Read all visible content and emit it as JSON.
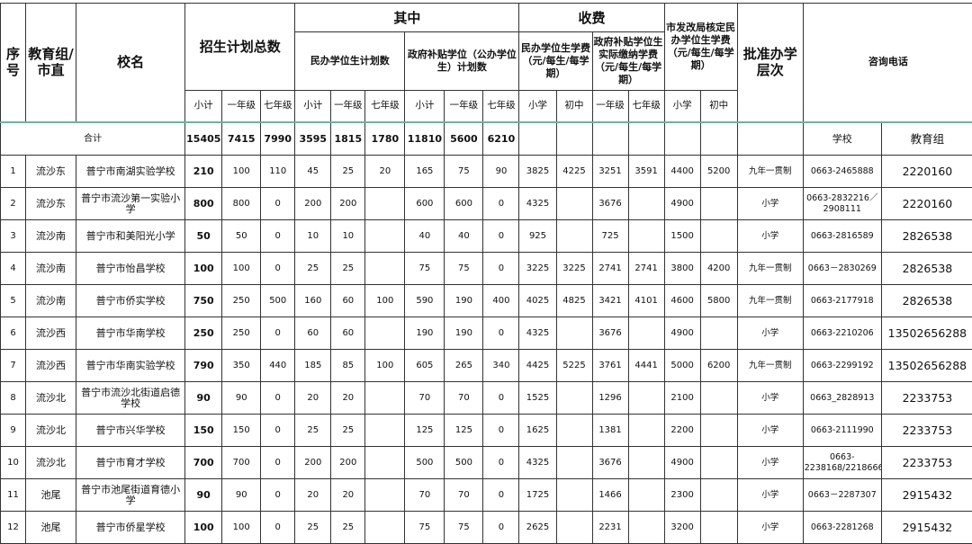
{
  "header": {
    "seq": "序号",
    "group": "教育组/市直",
    "school": "校名",
    "plan_total": "招生计划总数",
    "among": "其中",
    "private_plan": "民办学位生计划数",
    "gov_plan": "政府补贴学位（公办学位生）计划数",
    "fees": "收费",
    "private_fee": "民办学位生学费（元/每生/每学期）",
    "gov_fee": "政府补贴学位生实际缴纳学费（元/每生/每学期）",
    "ndrc_fee": "市发改局核定民办学位生学费（元/每生/每学期）",
    "level": "批准办学层次",
    "phone": "咨询电话",
    "subtotal": "小计",
    "grade1": "一年级",
    "grade7": "七年级",
    "primary": "小学",
    "junior": "初中"
  },
  "total": {
    "label": "合计",
    "values": [
      "15405",
      "7415",
      "7990",
      "3595",
      "1815",
      "1780",
      "11810",
      "5600",
      "6210"
    ],
    "phone_school": "学校",
    "phone_group": "教育组"
  },
  "rows": [
    {
      "seq": "1",
      "group": "流沙东",
      "school": "普宁市南湖实验学校",
      "plan": [
        "210",
        "100",
        "110",
        "45",
        "25",
        "20",
        "165",
        "75",
        "90"
      ],
      "fees": [
        "3825",
        "4225",
        "3251",
        "3591",
        "4400",
        "5200"
      ],
      "level": "九年一贯制",
      "phone": "0663-2465888",
      "edu": "2220160"
    },
    {
      "seq": "2",
      "group": "流沙东",
      "school": "普宁市流沙第一实验小学",
      "plan": [
        "800",
        "800",
        "0",
        "200",
        "200",
        "",
        "600",
        "600",
        "0"
      ],
      "fees": [
        "4325",
        "",
        "3676",
        "",
        "4900",
        ""
      ],
      "level": "小学",
      "phone": "0663-2832216／2908111",
      "edu": "2220160"
    },
    {
      "seq": "3",
      "group": "流沙南",
      "school": "普宁市和美阳光小学",
      "plan": [
        "50",
        "50",
        "0",
        "10",
        "10",
        "",
        "40",
        "40",
        "0"
      ],
      "fees": [
        "925",
        "",
        "725",
        "",
        "1500",
        ""
      ],
      "level": "小学",
      "phone": "0663-2816589",
      "edu": "2826538"
    },
    {
      "seq": "4",
      "group": "流沙南",
      "school": "普宁市怡昌学校",
      "plan": [
        "100",
        "100",
        "0",
        "25",
        "25",
        "",
        "75",
        "75",
        "0"
      ],
      "fees": [
        "3225",
        "3225",
        "2741",
        "2741",
        "3800",
        "4200"
      ],
      "level": "九年一贯制",
      "phone": "0663－2830269",
      "edu": "2826538"
    },
    {
      "seq": "5",
      "group": "流沙南",
      "school": "普宁市侨实学校",
      "plan": [
        "750",
        "250",
        "500",
        "160",
        "60",
        "100",
        "590",
        "190",
        "400"
      ],
      "fees": [
        "4025",
        "4825",
        "3421",
        "4101",
        "4600",
        "5800"
      ],
      "level": "九年一贯制",
      "phone": "0663-2177918",
      "edu": "2826538"
    },
    {
      "seq": "6",
      "group": "流沙西",
      "school": "普宁市华南学校",
      "plan": [
        "250",
        "250",
        "0",
        "60",
        "60",
        "",
        "190",
        "190",
        "0"
      ],
      "fees": [
        "4325",
        "",
        "3676",
        "",
        "4900",
        ""
      ],
      "level": "小学",
      "phone": "0663-2210206",
      "edu": "13502656288"
    },
    {
      "seq": "7",
      "group": "流沙西",
      "school": "普宁市华南实验学校",
      "plan": [
        "790",
        "350",
        "440",
        "185",
        "85",
        "100",
        "605",
        "265",
        "340"
      ],
      "fees": [
        "4425",
        "5225",
        "3761",
        "4441",
        "5000",
        "6200"
      ],
      "level": "九年一贯制",
      "phone": "0663-2299192",
      "edu": "13502656288"
    },
    {
      "seq": "8",
      "group": "流沙北",
      "school": "普宁市流沙北街道启德学校",
      "plan": [
        "90",
        "90",
        "0",
        "20",
        "20",
        "",
        "70",
        "70",
        "0"
      ],
      "fees": [
        "1525",
        "",
        "1296",
        "",
        "2100",
        ""
      ],
      "level": "小学",
      "phone": "0663_2828913",
      "edu": "2233753"
    },
    {
      "seq": "9",
      "group": "流沙北",
      "school": "普宁市兴华学校",
      "plan": [
        "150",
        "150",
        "0",
        "25",
        "25",
        "",
        "125",
        "125",
        "0"
      ],
      "fees": [
        "1625",
        "",
        "1381",
        "",
        "2200",
        ""
      ],
      "level": "小学",
      "phone": "0663-2111990",
      "edu": "2233753"
    },
    {
      "seq": "10",
      "group": "流沙北",
      "school": "普宁市育才学校",
      "plan": [
        "700",
        "700",
        "0",
        "200",
        "200",
        "",
        "500",
        "500",
        "0"
      ],
      "fees": [
        "4325",
        "",
        "3676",
        "",
        "4900",
        ""
      ],
      "level": "小学",
      "phone": "0663-2238168/2218666",
      "edu": "2233753"
    },
    {
      "seq": "11",
      "group": "池尾",
      "school": "普宁市池尾街道育德小学",
      "plan": [
        "90",
        "90",
        "0",
        "20",
        "20",
        "",
        "70",
        "70",
        "0"
      ],
      "fees": [
        "1725",
        "",
        "1466",
        "",
        "2300",
        ""
      ],
      "level": "小学",
      "phone": "0663－2287307",
      "edu": "2915432"
    },
    {
      "seq": "12",
      "group": "池尾",
      "school": "普宁市侨星学校",
      "plan": [
        "100",
        "100",
        "0",
        "25",
        "25",
        "",
        "75",
        "75",
        "0"
      ],
      "fees": [
        "2625",
        "",
        "2231",
        "",
        "3200",
        ""
      ],
      "level": "小学",
      "phone": "0663-2281268",
      "edu": "2915432"
    }
  ]
}
